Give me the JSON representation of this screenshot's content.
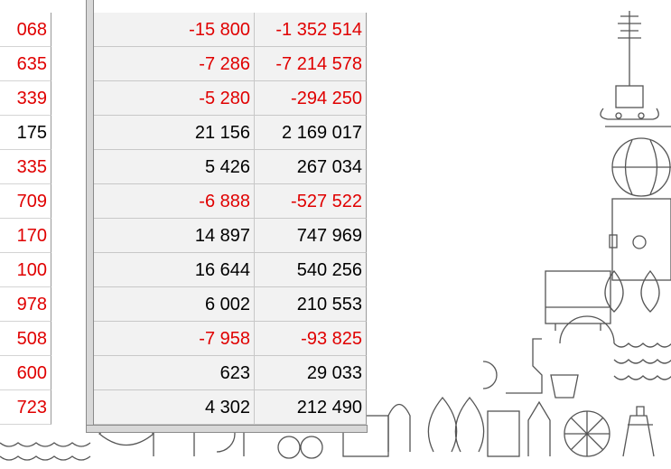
{
  "table": {
    "rows": [
      [
        "068",
        "-15 800",
        "-1 352 514"
      ],
      [
        "635",
        "-7 286",
        "-7 214 578"
      ],
      [
        "339",
        "-5 280",
        "-294 250"
      ],
      [
        "175",
        "21 156",
        "2 169 017"
      ],
      [
        "335",
        "5 426",
        "267 034"
      ],
      [
        "709",
        "-6 888",
        "-527 522"
      ],
      [
        "170",
        "14 897",
        "747 969"
      ],
      [
        "100",
        "16 644",
        "540 256"
      ],
      [
        "978",
        "6 002",
        "210 553"
      ],
      [
        "508",
        "-7 958",
        "-93 825"
      ],
      [
        "600",
        "623",
        "29 033"
      ],
      [
        "723",
        "4 302",
        "212 490"
      ]
    ],
    "left_red": [
      true,
      true,
      true,
      false,
      true,
      true,
      true,
      true,
      true,
      true,
      true,
      true
    ]
  }
}
